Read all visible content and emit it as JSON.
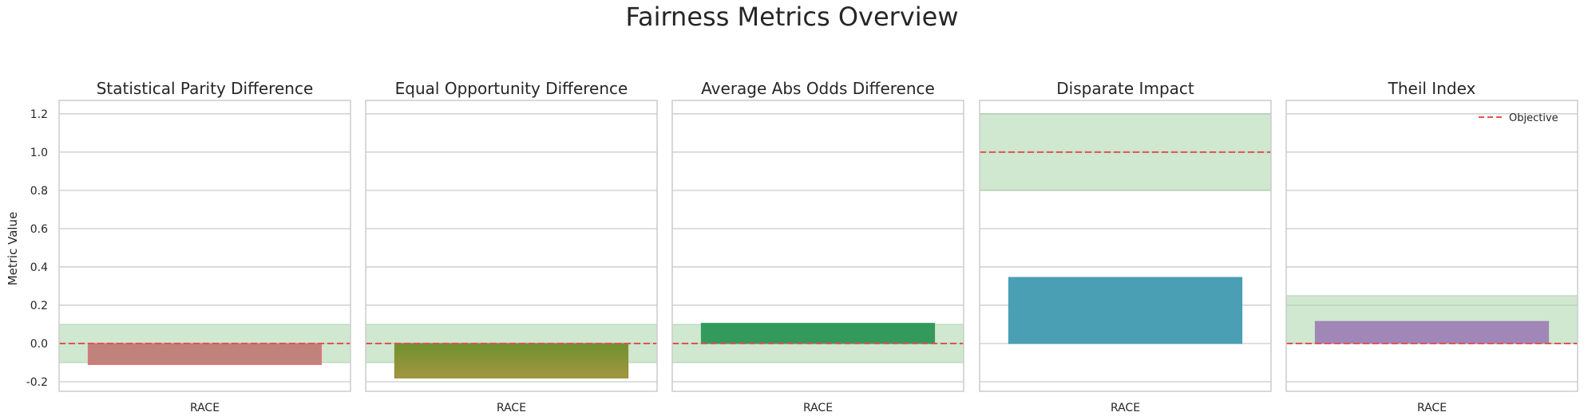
{
  "chart_data": {
    "type": "bar",
    "title": "Fairness Metrics Overview",
    "ylabel": "Metric Value",
    "ylim": [
      -0.25,
      1.27
    ],
    "y_ticks": [
      "-0.2",
      "0.0",
      "0.2",
      "0.4",
      "0.6",
      "0.8",
      "1.0",
      "1.2"
    ],
    "grid": true,
    "legend": {
      "label": "Objective",
      "placement": "top-right"
    },
    "colors": {
      "objective": "#e05252",
      "band": "#a8d5a8",
      "band_edge": "#8fbf8f",
      "grid": "#cccccc",
      "frame": "#cccccc"
    },
    "panels": [
      {
        "title": "Statistical Parity Difference",
        "category": "RACE",
        "value": -0.11,
        "objective": 0.0,
        "band": [
          -0.1,
          0.1
        ],
        "color": "#c0827a",
        "edge": "#e8737e"
      },
      {
        "title": "Equal Opportunity Difference",
        "category": "RACE",
        "value": -0.18,
        "objective": 0.0,
        "band": [
          -0.1,
          0.1
        ],
        "color": "#8a8d30",
        "edge": "#8a8d30",
        "gradient": [
          "#6f9130",
          "#a3963f"
        ]
      },
      {
        "title": "Average Abs Odds Difference",
        "category": "RACE",
        "value": 0.105,
        "objective": 0.0,
        "band": [
          -0.1,
          0.1
        ],
        "color": "#339a5c",
        "edge": "#339a5c"
      },
      {
        "title": "Disparate Impact",
        "category": "RACE",
        "value": 0.345,
        "objective": 1.0,
        "band": [
          0.8,
          1.2
        ],
        "color": "#4a9fb5",
        "edge": "#4a9fb5"
      },
      {
        "title": "Theil Index",
        "category": "RACE",
        "value": 0.115,
        "objective": 0.0,
        "band": [
          0.0,
          0.25
        ],
        "color": "#a087b8",
        "edge": "#a087b8",
        "show_legend": true
      }
    ]
  }
}
